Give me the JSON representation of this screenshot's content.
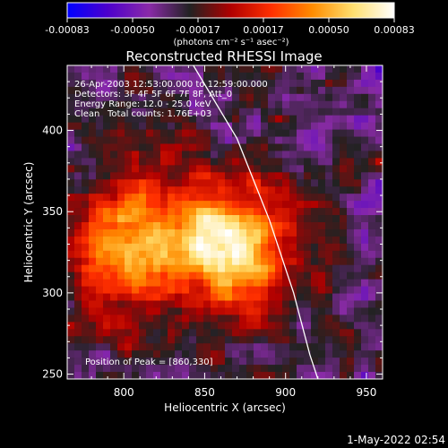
{
  "colorbar": {
    "ticks": [
      "-0.00083",
      "-0.00050",
      "-0.00017",
      "0.00017",
      "0.00050",
      "0.00083"
    ],
    "unit_label": "(photons cm⁻² s⁻¹ asec⁻²)",
    "stops": [
      "#0000ff",
      "#4d00cc",
      "#8a2aa8",
      "#222222",
      "#b00000",
      "#ff3000",
      "#ff8c00",
      "#ffe070",
      "#ffffff"
    ]
  },
  "chart_data": {
    "type": "heatmap",
    "title": "Reconstructed RHESSI Image",
    "xlabel": "Heliocentric X (arcsec)",
    "ylabel": "Heliocentric Y (arcsec)",
    "xlim": [
      765,
      960
    ],
    "ylim": [
      247,
      440
    ],
    "xticks": [
      800,
      850,
      900,
      950
    ],
    "yticks": [
      250,
      300,
      350,
      400
    ],
    "annotations": [
      "26-Apr-2003 12:53:00.000 to 12:59:00.000",
      "Detectors: 3F 4F 5F 6F 7F 8F, Att_0",
      "Energy Range: 12.0 - 25.0 keV",
      "Clean",
      "Total counts: 1.76E+03"
    ],
    "peak_label": "Position of Peak = [860,330]",
    "peak": [
      860,
      330
    ],
    "limb_curve": [
      [
        843,
        440
      ],
      [
        870,
        395
      ],
      [
        890,
        345
      ],
      [
        905,
        300
      ],
      [
        915,
        262
      ],
      [
        920,
        247
      ]
    ]
  },
  "footer": {
    "timestamp": "1-May-2022 02:54"
  }
}
